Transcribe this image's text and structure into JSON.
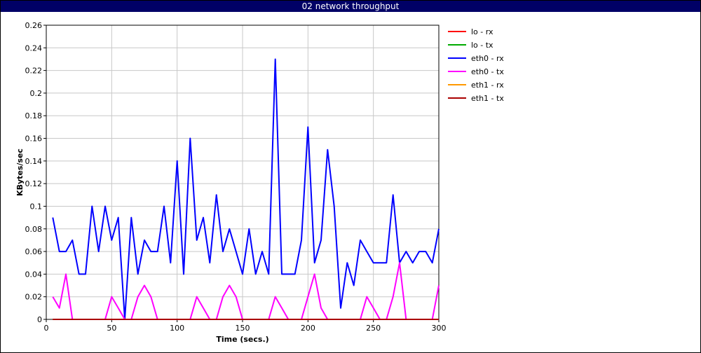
{
  "window": {
    "title": "02 network throughput"
  },
  "chart_data": {
    "type": "line",
    "title": "02 network throughput",
    "xlabel": "Time (secs.)",
    "ylabel": "KBytes/sec",
    "xlim": [
      0,
      300
    ],
    "ylim": [
      0,
      0.26
    ],
    "xticks": [
      0,
      50,
      100,
      150,
      200,
      250,
      300
    ],
    "yticks": [
      0,
      0.02,
      0.04,
      0.06,
      0.08,
      0.1,
      0.12,
      0.14,
      0.16,
      0.18,
      0.2,
      0.22,
      0.24,
      0.26
    ],
    "grid": true,
    "legend_position": "right",
    "x": [
      5,
      10,
      15,
      20,
      25,
      30,
      35,
      40,
      45,
      50,
      55,
      60,
      65,
      70,
      75,
      80,
      85,
      90,
      95,
      100,
      105,
      110,
      115,
      120,
      125,
      130,
      135,
      140,
      145,
      150,
      155,
      160,
      165,
      170,
      175,
      180,
      185,
      190,
      195,
      200,
      205,
      210,
      215,
      220,
      225,
      230,
      235,
      240,
      245,
      250,
      255,
      260,
      265,
      270,
      275,
      280,
      285,
      290,
      295,
      300
    ],
    "series": [
      {
        "name": "lo - rx",
        "color": "#ff0000",
        "values": [
          0,
          0,
          0,
          0,
          0,
          0,
          0,
          0,
          0,
          0,
          0,
          0,
          0,
          0,
          0,
          0,
          0,
          0,
          0,
          0,
          0,
          0,
          0,
          0,
          0,
          0,
          0,
          0,
          0,
          0,
          0,
          0,
          0,
          0,
          0,
          0,
          0,
          0,
          0,
          0,
          0,
          0,
          0,
          0,
          0,
          0,
          0,
          0,
          0,
          0,
          0,
          0,
          0,
          0,
          0,
          0,
          0,
          0,
          0,
          0
        ]
      },
      {
        "name": "lo - tx",
        "color": "#00aa00",
        "values": [
          0,
          0,
          0,
          0,
          0,
          0,
          0,
          0,
          0,
          0,
          0,
          0,
          0,
          0,
          0,
          0,
          0,
          0,
          0,
          0,
          0,
          0,
          0,
          0,
          0,
          0,
          0,
          0,
          0,
          0,
          0,
          0,
          0,
          0,
          0,
          0,
          0,
          0,
          0,
          0,
          0,
          0,
          0,
          0,
          0,
          0,
          0,
          0,
          0,
          0,
          0,
          0,
          0,
          0,
          0,
          0,
          0,
          0,
          0,
          0
        ]
      },
      {
        "name": "eth0 - rx",
        "color": "#0000ff",
        "values": [
          0.09,
          0.06,
          0.06,
          0.07,
          0.04,
          0.04,
          0.1,
          0.06,
          0.1,
          0.07,
          0.09,
          0.0,
          0.09,
          0.04,
          0.07,
          0.06,
          0.06,
          0.1,
          0.05,
          0.14,
          0.04,
          0.16,
          0.07,
          0.09,
          0.05,
          0.11,
          0.06,
          0.08,
          0.06,
          0.04,
          0.08,
          0.04,
          0.06,
          0.04,
          0.23,
          0.04,
          0.04,
          0.04,
          0.07,
          0.17,
          0.05,
          0.07,
          0.15,
          0.1,
          0.01,
          0.05,
          0.03,
          0.07,
          0.06,
          0.05,
          0.05,
          0.05,
          0.11,
          0.05,
          0.06,
          0.05,
          0.06,
          0.06,
          0.05,
          0.08
        ]
      },
      {
        "name": "eth0 - tx",
        "color": "#ff00ff",
        "values": [
          0.02,
          0.01,
          0.04,
          0,
          0,
          0,
          0,
          0,
          0,
          0.02,
          0.01,
          0,
          0,
          0.02,
          0.03,
          0.02,
          0,
          0,
          0,
          0,
          0,
          0,
          0.02,
          0.01,
          0,
          0,
          0.02,
          0.03,
          0.02,
          0,
          0,
          0,
          0,
          0,
          0.02,
          0.01,
          0,
          0,
          0,
          0.02,
          0.04,
          0.01,
          0,
          0,
          0,
          0,
          0,
          0,
          0.02,
          0.01,
          0,
          0,
          0.02,
          0.05,
          0,
          0,
          0,
          0,
          0,
          0.03
        ]
      },
      {
        "name": "eth1 - rx",
        "color": "#ff9900",
        "values": [
          0,
          0,
          0,
          0,
          0,
          0,
          0,
          0,
          0,
          0,
          0,
          0,
          0,
          0,
          0,
          0,
          0,
          0,
          0,
          0,
          0,
          0,
          0,
          0,
          0,
          0,
          0,
          0,
          0,
          0,
          0,
          0,
          0,
          0,
          0,
          0,
          0,
          0,
          0,
          0,
          0,
          0,
          0,
          0,
          0,
          0,
          0,
          0,
          0,
          0,
          0,
          0,
          0,
          0,
          0,
          0,
          0,
          0,
          0,
          0
        ]
      },
      {
        "name": "eth1 - tx",
        "color": "#aa0000",
        "values": [
          0,
          0,
          0,
          0,
          0,
          0,
          0,
          0,
          0,
          0,
          0,
          0,
          0,
          0,
          0,
          0,
          0,
          0,
          0,
          0,
          0,
          0,
          0,
          0,
          0,
          0,
          0,
          0,
          0,
          0,
          0,
          0,
          0,
          0,
          0,
          0,
          0,
          0,
          0,
          0,
          0,
          0,
          0,
          0,
          0,
          0,
          0,
          0,
          0,
          0,
          0,
          0,
          0,
          0,
          0,
          0,
          0,
          0,
          0,
          0
        ]
      }
    ]
  }
}
